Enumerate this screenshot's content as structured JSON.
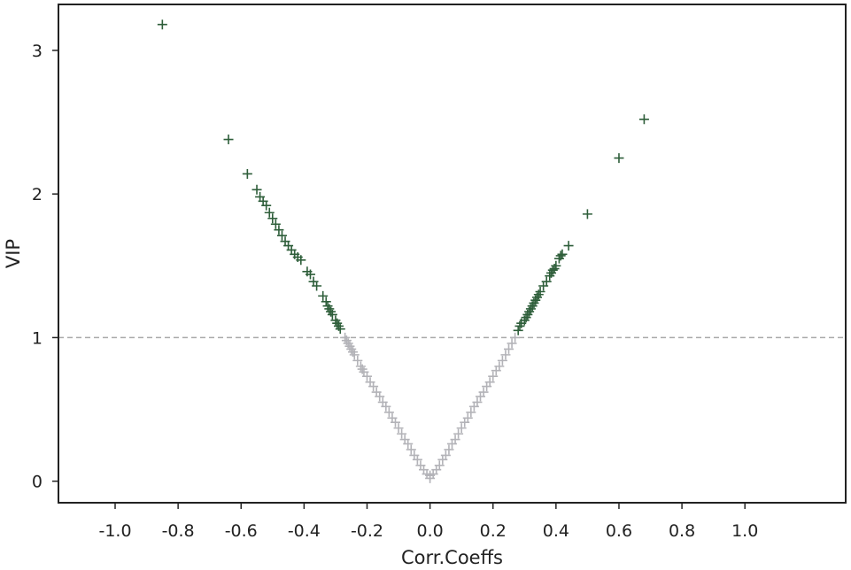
{
  "chart_data": {
    "type": "scatter",
    "title": "",
    "xlabel": "Corr.Coeffs",
    "ylabel": "VIP",
    "xlim": [
      -1.18,
      1.32
    ],
    "ylim": [
      -0.15,
      3.32
    ],
    "xticks": [
      -1.0,
      -0.8,
      -0.6,
      -0.4,
      -0.2,
      0.0,
      0.2,
      0.4,
      0.6,
      0.8,
      1.0
    ],
    "xtick_labels": [
      "-1.0",
      "-0.8",
      "-0.6",
      "-0.4",
      "-0.2",
      "0.0",
      "0.2",
      "0.4",
      "0.6",
      "0.8",
      "1.0"
    ],
    "yticks": [
      0,
      1,
      2,
      3
    ],
    "ytick_labels": [
      "0",
      "1",
      "2",
      "3"
    ],
    "grid": false,
    "legend": "none",
    "marker": "+",
    "threshold_line": {
      "y": 1.0,
      "style": "dashed",
      "color": "#aaaaaa"
    },
    "colors": {
      "significant": "#2e5e3a",
      "non_significant": "#b3b3b8",
      "axes": "#222222"
    },
    "series": [
      {
        "color": "#2e5e3a",
        "points": [
          [
            -0.85,
            3.18
          ],
          [
            -0.64,
            2.38
          ],
          [
            -0.58,
            2.14
          ],
          [
            -0.55,
            2.03
          ],
          [
            -0.54,
            1.98
          ],
          [
            -0.53,
            1.95
          ],
          [
            -0.52,
            1.92
          ],
          [
            -0.51,
            1.87
          ],
          [
            -0.5,
            1.83
          ],
          [
            -0.49,
            1.79
          ],
          [
            -0.48,
            1.75
          ],
          [
            -0.47,
            1.71
          ],
          [
            -0.46,
            1.67
          ],
          [
            -0.45,
            1.64
          ],
          [
            -0.44,
            1.61
          ],
          [
            -0.43,
            1.58
          ],
          [
            -0.42,
            1.56
          ],
          [
            -0.41,
            1.54
          ],
          [
            -0.39,
            1.46
          ],
          [
            -0.38,
            1.44
          ],
          [
            -0.37,
            1.39
          ],
          [
            -0.36,
            1.36
          ],
          [
            -0.34,
            1.29
          ],
          [
            -0.33,
            1.25
          ],
          [
            -0.325,
            1.22
          ],
          [
            -0.32,
            1.2
          ],
          [
            -0.315,
            1.18
          ],
          [
            -0.31,
            1.16
          ],
          [
            -0.3,
            1.12
          ],
          [
            -0.295,
            1.1
          ],
          [
            -0.29,
            1.08
          ],
          [
            -0.285,
            1.06
          ],
          [
            0.28,
            1.05
          ],
          [
            0.285,
            1.08
          ],
          [
            0.29,
            1.1
          ],
          [
            0.3,
            1.12
          ],
          [
            0.305,
            1.14
          ],
          [
            0.31,
            1.16
          ],
          [
            0.315,
            1.18
          ],
          [
            0.32,
            1.2
          ],
          [
            0.325,
            1.22
          ],
          [
            0.33,
            1.24
          ],
          [
            0.335,
            1.26
          ],
          [
            0.34,
            1.28
          ],
          [
            0.345,
            1.3
          ],
          [
            0.35,
            1.32
          ],
          [
            0.36,
            1.36
          ],
          [
            0.37,
            1.39
          ],
          [
            0.38,
            1.43
          ],
          [
            0.385,
            1.45
          ],
          [
            0.39,
            1.47
          ],
          [
            0.395,
            1.48
          ],
          [
            0.4,
            1.5
          ],
          [
            0.41,
            1.55
          ],
          [
            0.415,
            1.57
          ],
          [
            0.42,
            1.58
          ],
          [
            0.44,
            1.64
          ],
          [
            0.5,
            1.86
          ],
          [
            0.6,
            2.25
          ],
          [
            0.68,
            2.52
          ]
        ]
      },
      {
        "color": "#b3b3b8",
        "points": [
          [
            -0.27,
            1.0
          ],
          [
            -0.265,
            0.98
          ],
          [
            -0.26,
            0.96
          ],
          [
            -0.255,
            0.94
          ],
          [
            -0.25,
            0.92
          ],
          [
            -0.245,
            0.9
          ],
          [
            -0.24,
            0.88
          ],
          [
            -0.23,
            0.84
          ],
          [
            -0.22,
            0.8
          ],
          [
            -0.215,
            0.78
          ],
          [
            -0.21,
            0.76
          ],
          [
            -0.2,
            0.73
          ],
          [
            -0.19,
            0.69
          ],
          [
            -0.18,
            0.66
          ],
          [
            -0.17,
            0.62
          ],
          [
            -0.16,
            0.59
          ],
          [
            -0.15,
            0.55
          ],
          [
            -0.14,
            0.52
          ],
          [
            -0.13,
            0.48
          ],
          [
            -0.12,
            0.44
          ],
          [
            -0.11,
            0.41
          ],
          [
            -0.1,
            0.37
          ],
          [
            -0.09,
            0.33
          ],
          [
            -0.08,
            0.29
          ],
          [
            -0.07,
            0.26
          ],
          [
            -0.06,
            0.22
          ],
          [
            -0.05,
            0.18
          ],
          [
            -0.04,
            0.15
          ],
          [
            -0.03,
            0.11
          ],
          [
            -0.02,
            0.08
          ],
          [
            -0.01,
            0.05
          ],
          [
            0.0,
            0.02
          ],
          [
            0.0,
            0.04
          ],
          [
            0.01,
            0.05
          ],
          [
            0.02,
            0.08
          ],
          [
            0.03,
            0.11
          ],
          [
            0.04,
            0.15
          ],
          [
            0.05,
            0.18
          ],
          [
            0.06,
            0.22
          ],
          [
            0.07,
            0.26
          ],
          [
            0.08,
            0.29
          ],
          [
            0.09,
            0.33
          ],
          [
            0.1,
            0.37
          ],
          [
            0.11,
            0.41
          ],
          [
            0.12,
            0.44
          ],
          [
            0.13,
            0.48
          ],
          [
            0.14,
            0.52
          ],
          [
            0.15,
            0.55
          ],
          [
            0.16,
            0.59
          ],
          [
            0.17,
            0.62
          ],
          [
            0.18,
            0.66
          ],
          [
            0.19,
            0.69
          ],
          [
            0.2,
            0.73
          ],
          [
            0.21,
            0.77
          ],
          [
            0.22,
            0.8
          ],
          [
            0.23,
            0.84
          ],
          [
            0.24,
            0.88
          ],
          [
            0.25,
            0.92
          ],
          [
            0.26,
            0.96
          ],
          [
            0.27,
            1.0
          ]
        ]
      }
    ]
  }
}
